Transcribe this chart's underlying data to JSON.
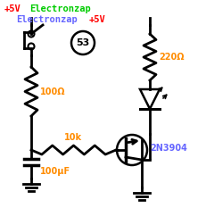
{
  "bg_color": "#ffffff",
  "title_line1_plus5v": "+5V",
  "title_line1_electronzap": "Electronzap",
  "title_line2_electronzap": "Electronzap",
  "title_line2_plus5v": "+5V",
  "label_220": "220Ω",
  "label_100": "100Ω",
  "label_10k": "10k",
  "label_cap": "100μF",
  "label_bjt": "2N3904",
  "circle_label": "53",
  "orange": "#ff8c00",
  "red": "#ff0000",
  "green": "#00cc00",
  "blue": "#6666ff",
  "black": "#000000",
  "lw": 2.0
}
